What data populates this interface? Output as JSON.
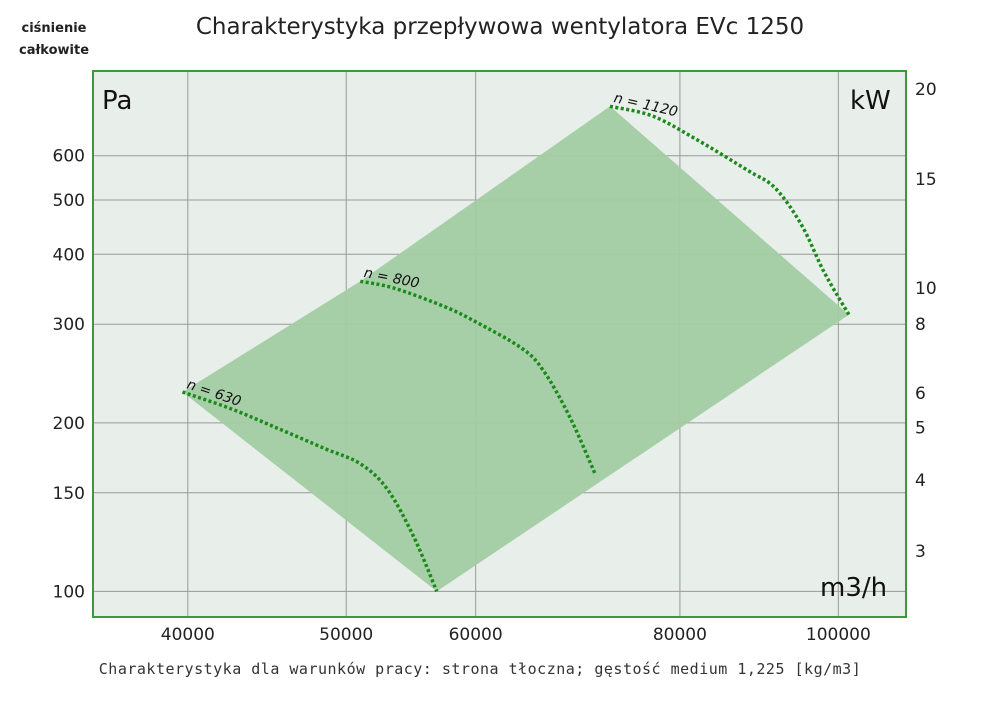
{
  "chart_data": {
    "type": "area",
    "title": "Charakterystyka przepływowa wentylatora EVc 1250",
    "ylabel_corner": "ciśnienie całkowite",
    "footer": "Charakterystyka dla warunków pracy: strona tłoczna; gęstość medium 1,225 [kg/m3]",
    "units": {
      "left": "Pa",
      "right": "kW",
      "bottom": "m3/h"
    },
    "x_scale": "log",
    "y_scale": "log",
    "xlim": [
      35000,
      110000
    ],
    "ylim": [
      90,
      850
    ],
    "x_ticks": [
      {
        "value": 40000,
        "label": "40000"
      },
      {
        "value": 50000,
        "label": "50000"
      },
      {
        "value": 60000,
        "label": "60000"
      },
      {
        "value": 80000,
        "label": "80000"
      },
      {
        "value": 100000,
        "label": "100000"
      }
    ],
    "y_ticks": [
      {
        "value": 100,
        "label": "100"
      },
      {
        "value": 150,
        "label": "150"
      },
      {
        "value": 200,
        "label": "200"
      },
      {
        "value": 300,
        "label": "300"
      },
      {
        "value": 400,
        "label": "400"
      },
      {
        "value": 500,
        "label": "500"
      },
      {
        "value": 600,
        "label": "600"
      }
    ],
    "y2_ticks": [
      {
        "value": 20,
        "label": "20",
        "at_pa": 790
      },
      {
        "value": 15,
        "label": "15",
        "at_pa": 545
      },
      {
        "value": 10,
        "label": "10",
        "at_pa": 348
      },
      {
        "value": 8,
        "label": "8",
        "at_pa": 300
      },
      {
        "value": 6,
        "label": "6",
        "at_pa": 226
      },
      {
        "value": 5,
        "label": "5",
        "at_pa": 196
      },
      {
        "value": 4,
        "label": "4",
        "at_pa": 158
      },
      {
        "value": 3,
        "label": "3",
        "at_pa": 118
      }
    ],
    "grid": true,
    "colors": {
      "region": "#a3cca3",
      "curve": "#1a8a1a",
      "frame": "#3a9a3a",
      "background": "#e8eeea",
      "grid": "#999999"
    },
    "operating_region": [
      {
        "x": 39700,
        "y": 227
      },
      {
        "x": 51000,
        "y": 358
      },
      {
        "x": 72500,
        "y": 735
      },
      {
        "x": 101500,
        "y": 312
      },
      {
        "x": 56800,
        "y": 100
      }
    ],
    "series": [
      {
        "name": "n = 630",
        "points": [
          {
            "x": 39700,
            "y": 227
          },
          {
            "x": 42500,
            "y": 212
          },
          {
            "x": 45500,
            "y": 195
          },
          {
            "x": 48500,
            "y": 180
          },
          {
            "x": 51000,
            "y": 169
          },
          {
            "x": 53000,
            "y": 152
          },
          {
            "x": 55000,
            "y": 125
          },
          {
            "x": 56800,
            "y": 100
          }
        ]
      },
      {
        "name": "n = 800",
        "points": [
          {
            "x": 51000,
            "y": 358
          },
          {
            "x": 53500,
            "y": 348
          },
          {
            "x": 57500,
            "y": 322
          },
          {
            "x": 60000,
            "y": 303
          },
          {
            "x": 64000,
            "y": 272
          },
          {
            "x": 66000,
            "y": 248
          },
          {
            "x": 68500,
            "y": 205
          },
          {
            "x": 71000,
            "y": 162
          }
        ]
      },
      {
        "name": "n = 1120",
        "points": [
          {
            "x": 72500,
            "y": 735
          },
          {
            "x": 77000,
            "y": 706
          },
          {
            "x": 82000,
            "y": 640
          },
          {
            "x": 88000,
            "y": 565
          },
          {
            "x": 91500,
            "y": 525
          },
          {
            "x": 95000,
            "y": 450
          },
          {
            "x": 98000,
            "y": 372
          },
          {
            "x": 101500,
            "y": 312
          }
        ]
      }
    ]
  }
}
